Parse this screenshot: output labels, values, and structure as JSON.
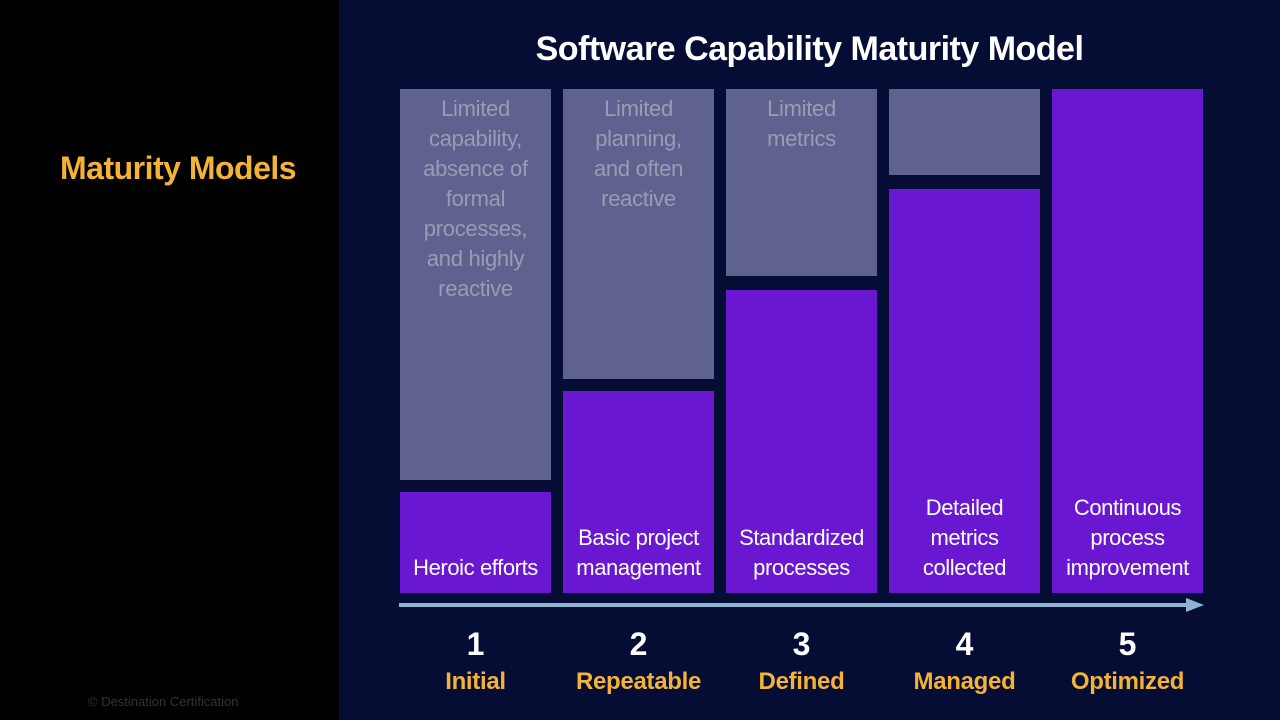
{
  "section_title": "Maturity Models",
  "copyright": "© Destination Certification",
  "title": "Software Capability Maturity Model",
  "levels": [
    {
      "number": "1",
      "name": "Initial",
      "upper": "Limited capability, absence of formal processes, and highly reactive",
      "lower": "Heroic efforts"
    },
    {
      "number": "2",
      "name": "Repeatable",
      "upper": "Limited planning, and often reactive",
      "lower": "Basic project management"
    },
    {
      "number": "3",
      "name": "Defined",
      "upper": "Limited metrics",
      "lower": "Standardized processes"
    },
    {
      "number": "4",
      "name": "Managed",
      "upper": "",
      "lower": "Detailed metrics collected"
    },
    {
      "number": "5",
      "name": "Optimized",
      "upper": "",
      "lower": "Continuous process improvement"
    }
  ],
  "colors": {
    "background": "#050d35",
    "gray_box": "#5f618e",
    "purple_box": "#6a17d2",
    "accent_yellow": "#f5b335",
    "arrow": "#8fb4d2"
  }
}
